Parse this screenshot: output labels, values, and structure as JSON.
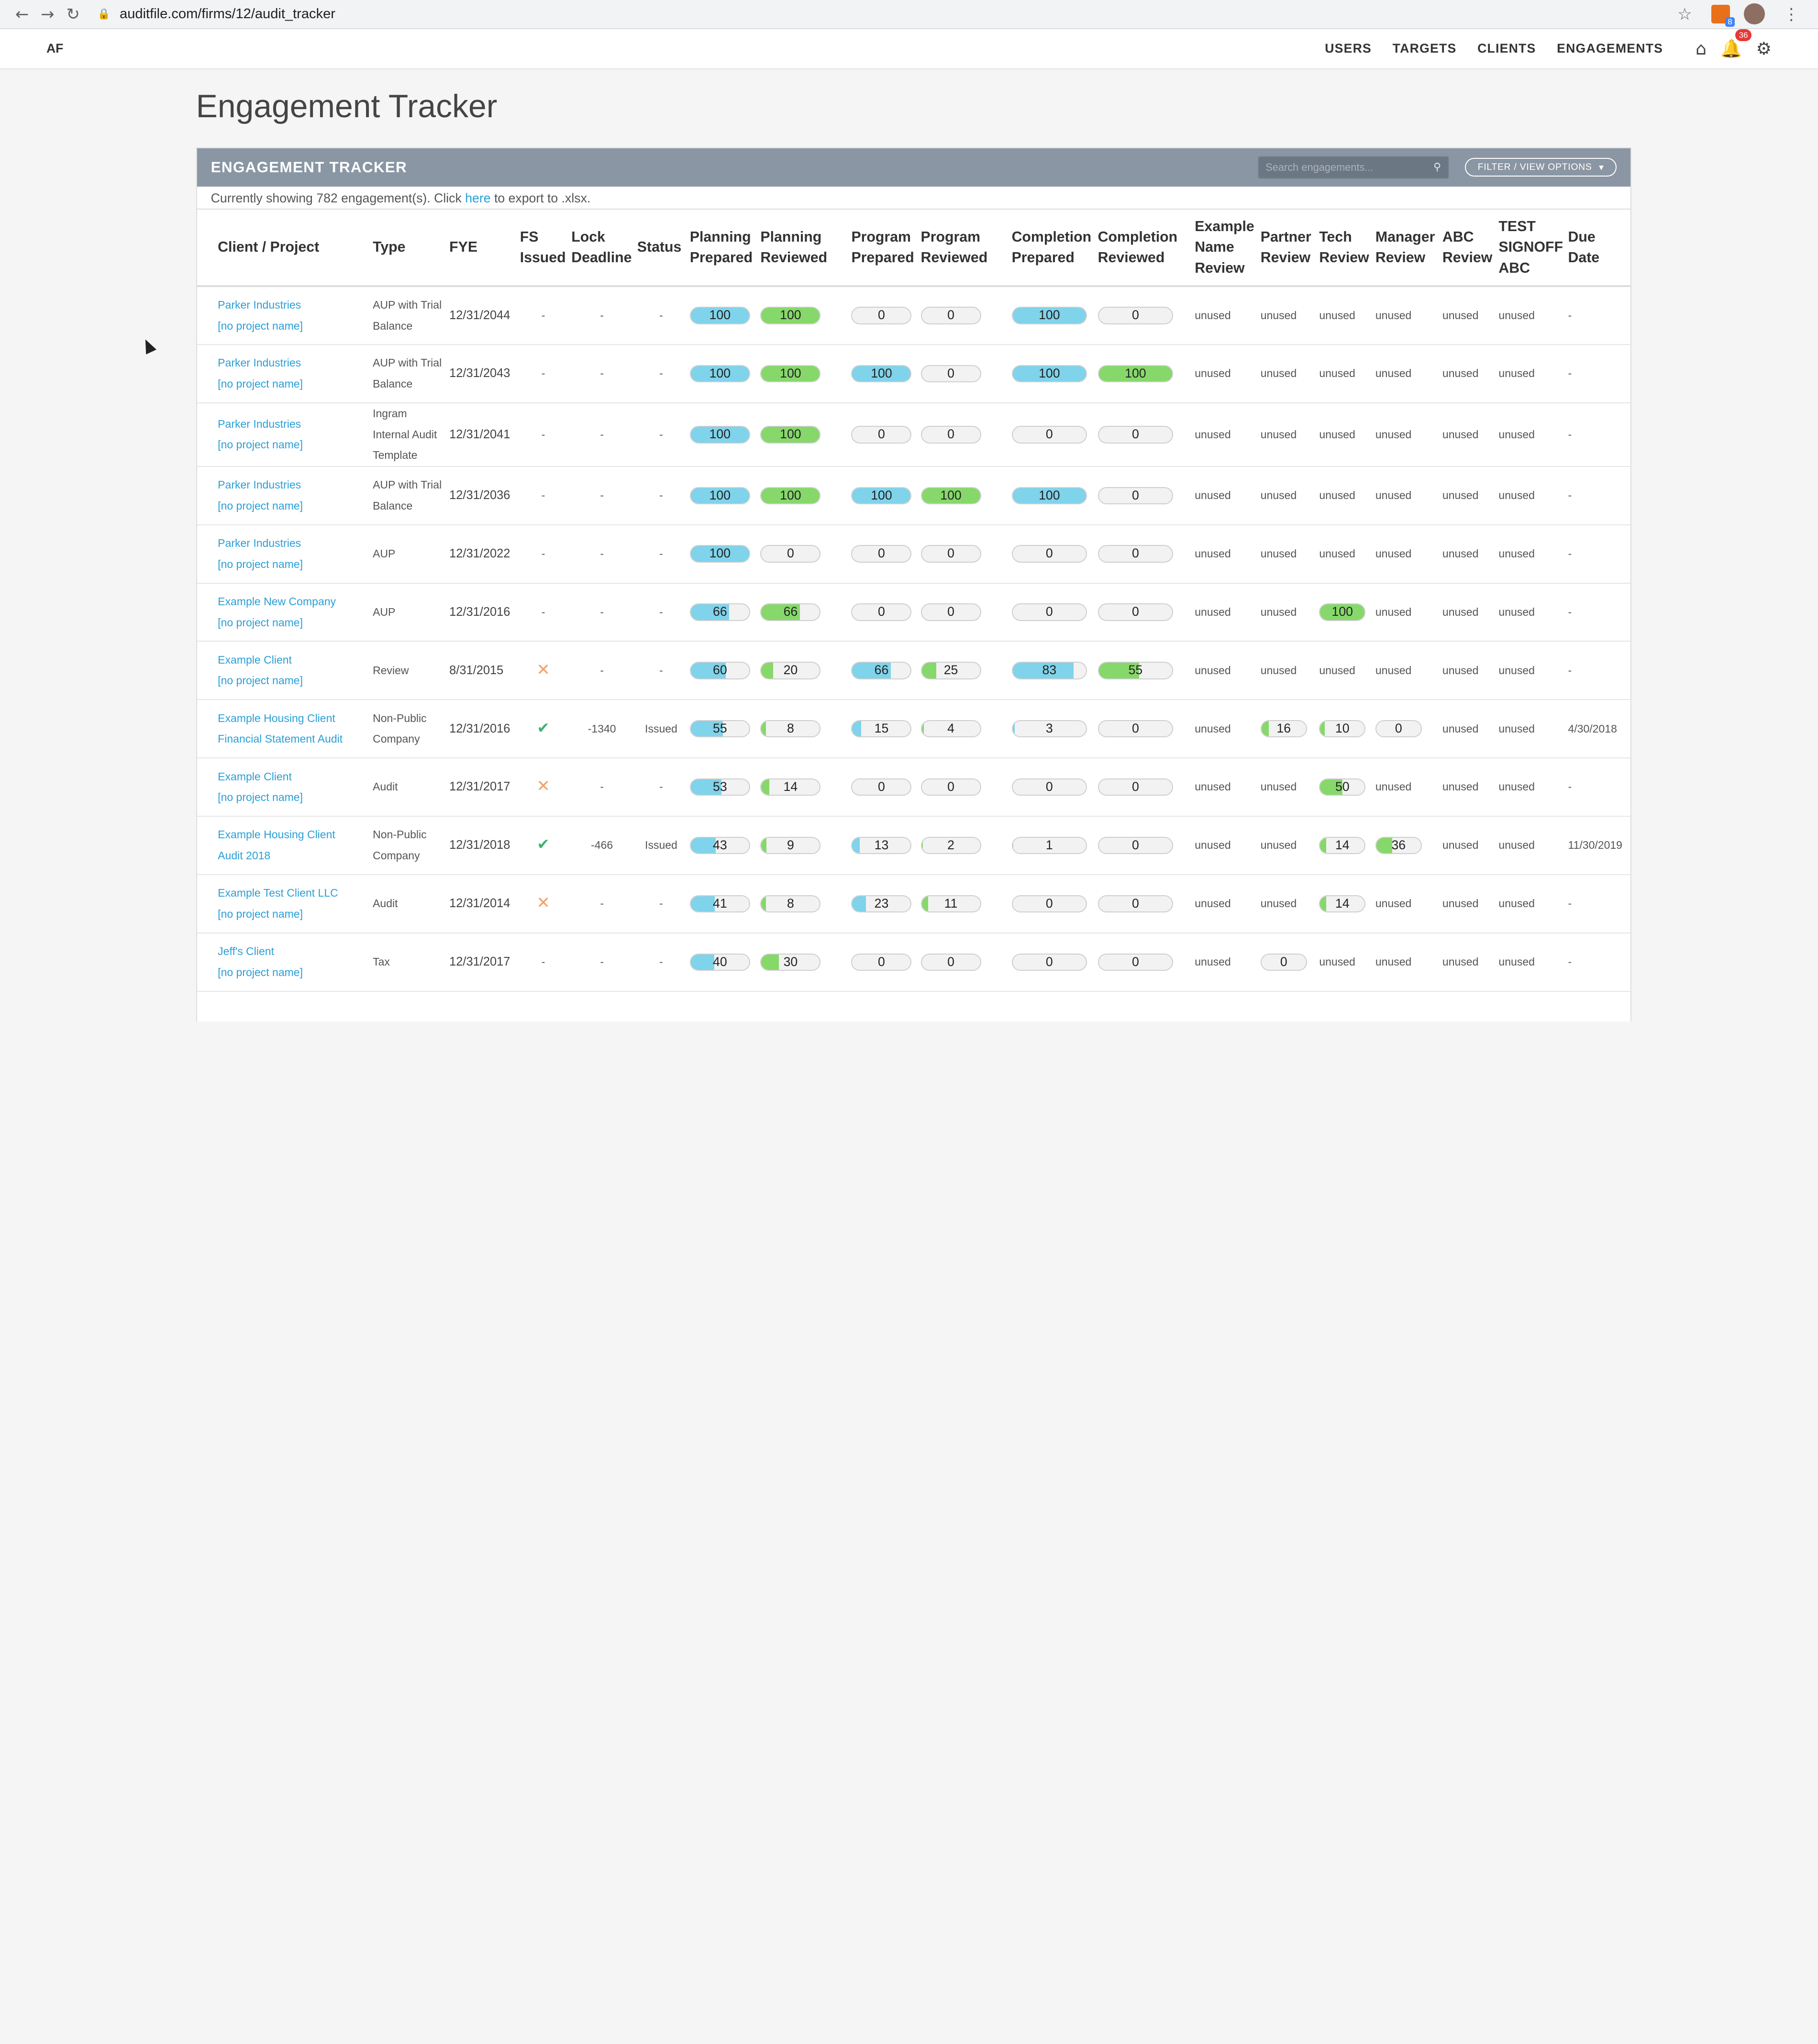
{
  "browser": {
    "url": "auditfile.com/firms/12/audit_tracker",
    "ext_badge": "8"
  },
  "nav": {
    "logo": "AF",
    "links": [
      "USERS",
      "TARGETS",
      "CLIENTS",
      "ENGAGEMENTS"
    ],
    "notification_count": "36"
  },
  "page_title": "Engagement Tracker",
  "panel": {
    "title": "ENGAGEMENT TRACKER",
    "search_placeholder": "Search engagements...",
    "filter_label": "FILTER / VIEW OPTIONS",
    "sub_prefix": "Currently showing 782 engagement(s). Click ",
    "sub_link": "here",
    "sub_suffix": " to export to .xlsx."
  },
  "columns": [
    "Client / Project",
    "Type",
    "FYE",
    "FS Issued",
    "Lock Deadline",
    "Status",
    "Planning Prepared",
    "Planning Reviewed",
    "Program Prepared",
    "Program Reviewed",
    "Completion Prepared",
    "Completion Reviewed",
    "Example Name Review",
    "Partner Review",
    "Tech Review",
    "Manager Review",
    "ABC Review",
    "TEST SIGNOFF ABC",
    "Due Date"
  ],
  "colors": {
    "blue": "#7fd3ea",
    "green": "#86d86a",
    "link": "#2a9fd6",
    "header": "#8a96a3"
  },
  "rows": [
    {
      "client": "Parker Industries",
      "project": "[no project name]",
      "type": "AUP with Trial Balance",
      "fye": "12/31/2044",
      "fs": "-",
      "lock": "-",
      "status": "-",
      "pp": 100,
      "pr": 100,
      "prp": 0,
      "prr": 0,
      "cp": 100,
      "cr": 0,
      "enr": "unused",
      "partner": "unused",
      "tech": "unused",
      "manager": "unused",
      "abc": "unused",
      "test": "unused",
      "due": "-"
    },
    {
      "client": "Parker Industries",
      "project": "[no project name]",
      "type": "AUP with Trial Balance",
      "fye": "12/31/2043",
      "fs": "-",
      "lock": "-",
      "status": "-",
      "pp": 100,
      "pr": 100,
      "prp": 100,
      "prr": 0,
      "cp": 100,
      "cr": 100,
      "enr": "unused",
      "partner": "unused",
      "tech": "unused",
      "manager": "unused",
      "abc": "unused",
      "test": "unused",
      "due": "-"
    },
    {
      "client": "Parker Industries",
      "project": "[no project name]",
      "type": "Ingram Internal Audit Template",
      "fye": "12/31/2041",
      "fs": "-",
      "lock": "-",
      "status": "-",
      "pp": 100,
      "pr": 100,
      "prp": 0,
      "prr": 0,
      "cp": 0,
      "cr": 0,
      "enr": "unused",
      "partner": "unused",
      "tech": "unused",
      "manager": "unused",
      "abc": "unused",
      "test": "unused",
      "due": "-"
    },
    {
      "client": "Parker Industries",
      "project": "[no project name]",
      "type": "AUP with Trial Balance",
      "fye": "12/31/2036",
      "fs": "-",
      "lock": "-",
      "status": "-",
      "pp": 100,
      "pr": 100,
      "prp": 100,
      "prr": 100,
      "cp": 100,
      "cr": 0,
      "enr": "unused",
      "partner": "unused",
      "tech": "unused",
      "manager": "unused",
      "abc": "unused",
      "test": "unused",
      "due": "-"
    },
    {
      "client": "Parker Industries",
      "project": "[no project name]",
      "type": "AUP",
      "fye": "12/31/2022",
      "fs": "-",
      "lock": "-",
      "status": "-",
      "pp": 100,
      "pr": 0,
      "prp": 0,
      "prr": 0,
      "cp": 0,
      "cr": 0,
      "enr": "unused",
      "partner": "unused",
      "tech": "unused",
      "manager": "unused",
      "abc": "unused",
      "test": "unused",
      "due": "-"
    },
    {
      "client": "Example New Company",
      "project": "[no project name]",
      "type": "AUP",
      "fye": "12/31/2016",
      "fs": "-",
      "lock": "-",
      "status": "-",
      "pp": 66,
      "pr": 66,
      "prp": 0,
      "prr": 0,
      "cp": 0,
      "cr": 0,
      "enr": "unused",
      "partner": "unused",
      "tech": 100,
      "manager": "unused",
      "abc": "unused",
      "test": "unused",
      "due": "-"
    },
    {
      "client": "Example Client",
      "project": "[no project name]",
      "type": "Review",
      "fye": "8/31/2015",
      "fs": "x",
      "lock": "-",
      "status": "-",
      "pp": 60,
      "pr": 20,
      "prp": 66,
      "prr": 25,
      "cp": 83,
      "cr": 55,
      "enr": "unused",
      "partner": "unused",
      "tech": "unused",
      "manager": "unused",
      "abc": "unused",
      "test": "unused",
      "due": "-"
    },
    {
      "client": "Example Housing Client",
      "project": "Financial Statement Audit",
      "type": "Non-Public Company",
      "fye": "12/31/2016",
      "fs": "check",
      "lock": "-1340",
      "status": "Issued",
      "pp": 55,
      "pr": 8,
      "prp": 15,
      "prr": 4,
      "cp": 3,
      "cr": 0,
      "enr": "unused",
      "partner": 16,
      "tech": 10,
      "manager": 0,
      "abc": "unused",
      "test": "unused",
      "due": "4/30/2018"
    },
    {
      "client": "Example Client",
      "project": "[no project name]",
      "type": "Audit",
      "fye": "12/31/2017",
      "fs": "x",
      "lock": "-",
      "status": "-",
      "pp": 53,
      "pr": 14,
      "prp": 0,
      "prr": 0,
      "cp": 0,
      "cr": 0,
      "enr": "unused",
      "partner": "unused",
      "tech": 50,
      "manager": "unused",
      "abc": "unused",
      "test": "unused",
      "due": "-"
    },
    {
      "client": "Example Housing Client",
      "project": "Audit 2018",
      "type": "Non-Public Company",
      "fye": "12/31/2018",
      "fs": "check",
      "lock": "-466",
      "status": "Issued",
      "pp": 43,
      "pr": 9,
      "prp": 13,
      "prr": 2,
      "cp": 1,
      "cr": 0,
      "enr": "unused",
      "partner": "unused",
      "tech": 14,
      "manager": 36,
      "abc": "unused",
      "test": "unused",
      "due": "11/30/2019"
    },
    {
      "client": "Example Test Client LLC",
      "project": "[no project name]",
      "type": "Audit",
      "fye": "12/31/2014",
      "fs": "x",
      "lock": "-",
      "status": "-",
      "pp": 41,
      "pr": 8,
      "prp": 23,
      "prr": 11,
      "cp": 0,
      "cr": 0,
      "enr": "unused",
      "partner": "unused",
      "tech": 14,
      "manager": "unused",
      "abc": "unused",
      "test": "unused",
      "due": "-"
    },
    {
      "client": "Jeff's Client",
      "project": "[no project name]",
      "type": "Tax",
      "fye": "12/31/2017",
      "fs": "-",
      "lock": "-",
      "status": "-",
      "pp": 40,
      "pr": 30,
      "prp": 0,
      "prr": 0,
      "cp": 0,
      "cr": 0,
      "enr": "unused",
      "partner": 0,
      "tech": "unused",
      "manager": "unused",
      "abc": "unused",
      "test": "unused",
      "due": "-"
    }
  ]
}
